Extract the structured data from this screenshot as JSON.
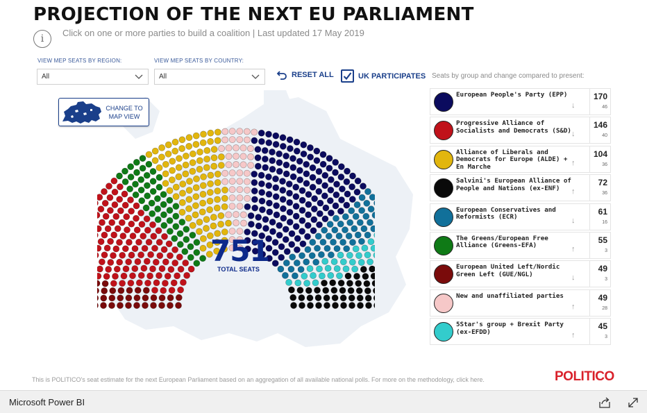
{
  "header": {
    "title": "PROJECTION OF THE NEXT EU PARLIAMENT",
    "subtitle": "Click on one or more parties to build a coalition | Last updated 17 May 2019",
    "info_icon": "i"
  },
  "filters": {
    "region_label": "VIEW MEP SEATS BY REGION:",
    "region_value": "All",
    "country_label": "VIEW MEP SEATS BY COUNTRY:",
    "country_value": "All",
    "reset_label": "RESET ALL",
    "uk_label": "UK PARTICIPATES",
    "uk_checked": true
  },
  "map_button": {
    "line1": "CHANGE TO",
    "line2": "MAP VIEW"
  },
  "total": {
    "value": "751",
    "label": "TOTAL SEATS"
  },
  "legend_heading": "Seats by group and change compared to present:",
  "parties": [
    {
      "name": "European People's Party (EPP)",
      "seats": "170",
      "change": "46",
      "direction": "down",
      "color": "#0b0b5e",
      "count": 170
    },
    {
      "name": "Progressive Alliance of Socialists and Democrats (S&D)",
      "seats": "146",
      "change": "40",
      "direction": "down",
      "color": "#c0121a",
      "count": 146
    },
    {
      "name": "Alliance of Liberals and Democrats for Europe (ALDE) + En Marche",
      "seats": "104",
      "change": "36",
      "direction": "up",
      "color": "#e2b60e",
      "count": 104
    },
    {
      "name": "Salvini's European Alliance of People and Nations (ex-ENF)",
      "seats": "72",
      "change": "36",
      "direction": "up",
      "color": "#0a0a0a",
      "count": 72
    },
    {
      "name": "European Conservatives and Reformists (ECR)",
      "seats": "61",
      "change": "16",
      "direction": "down",
      "color": "#11709a",
      "count": 61
    },
    {
      "name": "The Greens/European Free Alliance (Greens-EFA)",
      "seats": "55",
      "change": "3",
      "direction": "up",
      "color": "#0f7a16",
      "count": 55
    },
    {
      "name": "European United Left/Nordic Green Left (GUE/NGL)",
      "seats": "49",
      "change": "3",
      "direction": "down",
      "color": "#7a0b0b",
      "count": 49
    },
    {
      "name": "New and unaffiliated parties",
      "seats": "49",
      "change": "28",
      "direction": "up",
      "color": "#f6c8c8",
      "count": 49
    },
    {
      "name": "5Star's group + Brexit Party (ex-EFDD)",
      "seats": "45",
      "change": "3",
      "direction": "up",
      "color": "#33cccc",
      "count": 45
    }
  ],
  "hemicycle_order": [
    6,
    1,
    5,
    2,
    7,
    0,
    4,
    8,
    3
  ],
  "arrows": {
    "up": "↑",
    "down": "↓"
  },
  "footnote": "This is POLITICO's seat estimate for the next European Parliament based on an aggregation of all available national polls. For more on the methodology, click here.",
  "brand": "POLITICO",
  "footer": {
    "app_name": "Microsoft Power BI",
    "share_icon": "share-icon",
    "expand_icon": "expand-icon"
  }
}
